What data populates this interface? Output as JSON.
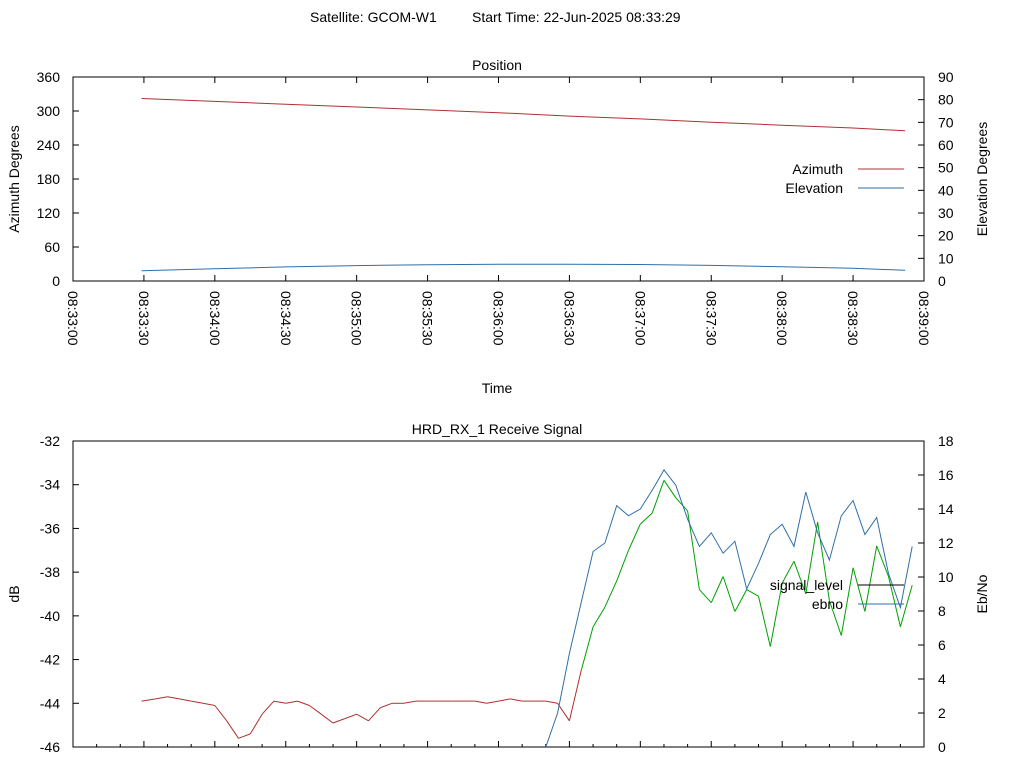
{
  "header": {
    "satellite": "Satellite: GCOM-W1",
    "start_time": "Start Time: 22-Jun-2025 08:33:29"
  },
  "chart_data": [
    {
      "type": "line",
      "title": "Position",
      "xlabel": "Time",
      "ylabel": "Azimuth Degrees",
      "y2label": "Elevation Degrees",
      "xlim": [
        "08:33:00",
        "08:39:00"
      ],
      "ylim": [
        0,
        360
      ],
      "y2lim": [
        0,
        90
      ],
      "x_ticks": [
        "08:33:00",
        "08:33:30",
        "08:34:00",
        "08:34:30",
        "08:35:00",
        "08:35:30",
        "08:36:00",
        "08:36:30",
        "08:37:00",
        "08:37:30",
        "08:38:00",
        "08:38:30",
        "08:39:00"
      ],
      "y_ticks": [
        "0",
        "60",
        "120",
        "180",
        "240",
        "300",
        "360"
      ],
      "y2_ticks": [
        "0",
        "10",
        "20",
        "30",
        "40",
        "50",
        "60",
        "70",
        "80",
        "90"
      ],
      "legend_position": "right",
      "series": [
        {
          "name": "Azimuth",
          "axis": "y",
          "color": "#b03030",
          "x": [
            "08:33:29",
            "08:34:00",
            "08:34:30",
            "08:35:00",
            "08:35:30",
            "08:36:00",
            "08:36:30",
            "08:37:00",
            "08:37:30",
            "08:38:00",
            "08:38:30",
            "08:38:52"
          ],
          "values": [
            322,
            317,
            312,
            307,
            302,
            297,
            291,
            286,
            280,
            275,
            270,
            265
          ]
        },
        {
          "name": "Elevation",
          "axis": "y2",
          "color": "#2f6fa8",
          "x": [
            "08:33:29",
            "08:34:00",
            "08:34:30",
            "08:35:00",
            "08:35:30",
            "08:36:00",
            "08:36:30",
            "08:37:00",
            "08:37:30",
            "08:38:00",
            "08:38:30",
            "08:38:52"
          ],
          "values": [
            4.5,
            5.4,
            6.2,
            6.8,
            7.2,
            7.4,
            7.4,
            7.3,
            6.9,
            6.3,
            5.6,
            4.7
          ]
        }
      ]
    },
    {
      "type": "line",
      "title": "HRD_RX_1 Receive Signal",
      "ylabel": "dB",
      "y2label": "Eb/No",
      "xlim": [
        "08:33:00",
        "08:39:00"
      ],
      "ylim": [
        -46,
        -32
      ],
      "y2lim": [
        0,
        18
      ],
      "y_ticks": [
        "-46",
        "-44",
        "-42",
        "-40",
        "-38",
        "-36",
        "-34",
        "-32"
      ],
      "y2_ticks": [
        "0",
        "2",
        "4",
        "6",
        "8",
        "10",
        "12",
        "14",
        "16",
        "18"
      ],
      "legend_position": "right",
      "series": [
        {
          "name": "signal_level",
          "axis": "y",
          "color": "#b03030",
          "color_strong": "#00a000",
          "x": [
            "08:33:29",
            "08:33:35",
            "08:33:40",
            "08:33:45",
            "08:33:50",
            "08:33:55",
            "08:34:00",
            "08:34:05",
            "08:34:10",
            "08:34:15",
            "08:34:20",
            "08:34:25",
            "08:34:30",
            "08:34:35",
            "08:34:40",
            "08:34:45",
            "08:34:50",
            "08:34:55",
            "08:35:00",
            "08:35:05",
            "08:35:10",
            "08:35:15",
            "08:35:20",
            "08:35:25",
            "08:35:30",
            "08:35:35",
            "08:35:40",
            "08:35:45",
            "08:35:50",
            "08:35:55",
            "08:36:00",
            "08:36:05",
            "08:36:10",
            "08:36:15",
            "08:36:20",
            "08:36:25",
            "08:36:30",
            "08:36:35",
            "08:36:40",
            "08:36:45",
            "08:36:50",
            "08:36:55",
            "08:37:00",
            "08:37:05",
            "08:37:10",
            "08:37:15",
            "08:37:20",
            "08:37:25",
            "08:37:30",
            "08:37:35",
            "08:37:40",
            "08:37:45",
            "08:37:50",
            "08:37:55",
            "08:38:00",
            "08:38:05",
            "08:38:10",
            "08:38:15",
            "08:38:20",
            "08:38:25",
            "08:38:30",
            "08:38:35",
            "08:38:40",
            "08:38:45",
            "08:38:50",
            "08:38:55"
          ],
          "values": [
            -43.9,
            -43.8,
            -43.7,
            -43.8,
            -43.9,
            -44.0,
            -44.1,
            -44.8,
            -45.6,
            -45.4,
            -44.5,
            -43.9,
            -44.0,
            -43.9,
            -44.1,
            -44.5,
            -44.9,
            -44.7,
            -44.5,
            -44.8,
            -44.2,
            -44.0,
            -44.0,
            -43.9,
            -43.9,
            -43.9,
            -43.9,
            -43.9,
            -43.9,
            -44.0,
            -43.9,
            -43.8,
            -43.9,
            -43.9,
            -43.9,
            -44.0,
            -44.8,
            -42.5,
            -40.5,
            -39.6,
            -38.4,
            -37.0,
            -35.8,
            -35.3,
            -33.8,
            -34.6,
            -35.2,
            -38.8,
            -39.4,
            -38.2,
            -39.8,
            -38.8,
            -39.1,
            -41.4,
            -38.5,
            -37.5,
            -39.0,
            -35.7,
            -39.3,
            -40.9,
            -37.8,
            -39.8,
            -36.8,
            -38.2,
            -40.5,
            -38.6
          ]
        },
        {
          "name": "ebno",
          "axis": "y2",
          "color": "#2f6fa8",
          "x": [
            "08:36:20",
            "08:36:25",
            "08:36:30",
            "08:36:35",
            "08:36:40",
            "08:36:45",
            "08:36:50",
            "08:36:55",
            "08:37:00",
            "08:37:05",
            "08:37:10",
            "08:37:15",
            "08:37:20",
            "08:37:25",
            "08:37:30",
            "08:37:35",
            "08:37:40",
            "08:37:45",
            "08:37:50",
            "08:37:55",
            "08:38:00",
            "08:38:05",
            "08:38:10",
            "08:38:15",
            "08:38:20",
            "08:38:25",
            "08:38:30",
            "08:38:35",
            "08:38:40",
            "08:38:45",
            "08:38:50",
            "08:38:55"
          ],
          "values": [
            0,
            2.0,
            5.5,
            8.5,
            11.5,
            12.0,
            14.2,
            13.6,
            14.0,
            15.1,
            16.3,
            15.4,
            13.4,
            11.8,
            12.6,
            11.4,
            12.1,
            9.3,
            10.8,
            12.5,
            13.1,
            11.8,
            15.0,
            12.6,
            11.0,
            13.6,
            14.5,
            12.5,
            13.5,
            10.2,
            8.2,
            11.8
          ]
        }
      ]
    }
  ]
}
